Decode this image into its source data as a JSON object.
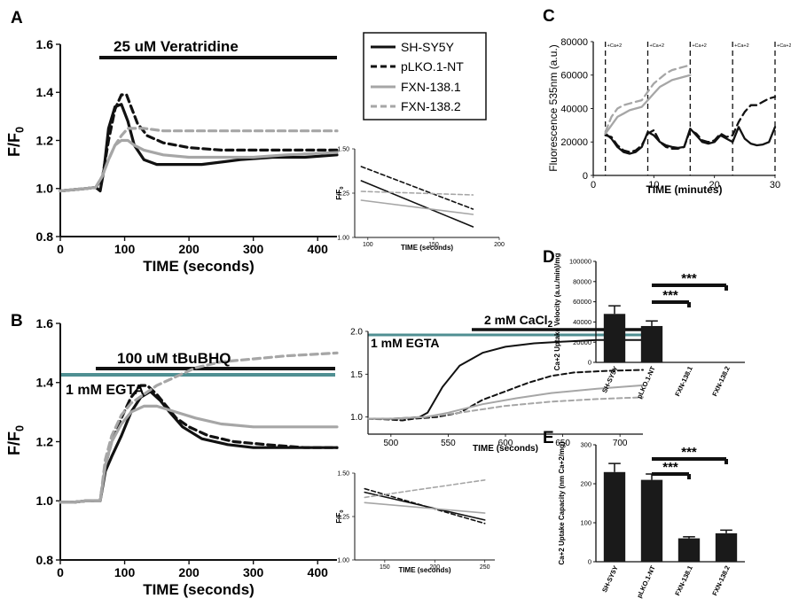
{
  "colors": {
    "black": "#111111",
    "gray": "#a6a6a6",
    "teal": "#4f8f92",
    "bar": "#1a1a1a"
  },
  "panels": {
    "A": "A",
    "B": "B",
    "C": "C",
    "D": "D",
    "E": "E"
  },
  "legend": [
    {
      "label": "SH-SY5Y",
      "color": "#111111",
      "dash": "solid"
    },
    {
      "label": "pLKO.1-NT",
      "color": "#111111",
      "dash": "dashed"
    },
    {
      "label": "FXN-138.1",
      "color": "#a6a6a6",
      "dash": "solid"
    },
    {
      "label": "FXN-138.2",
      "color": "#a6a6a6",
      "dash": "dashed"
    }
  ],
  "chart_data": [
    {
      "id": "A",
      "type": "line",
      "title": "25 uM Veratridine",
      "xlabel": "TIME (seconds)",
      "ylabel": "F/F0",
      "xlim": [
        0,
        430
      ],
      "ylim": [
        0.8,
        1.6
      ],
      "xticks": [
        0,
        100,
        200,
        300,
        400
      ],
      "yticks": [
        "0.8",
        "1.0",
        "1.2",
        "1.4",
        "1.6"
      ],
      "series": [
        {
          "name": "SH-SY5Y",
          "x": [
            0,
            20,
            40,
            55,
            62,
            68,
            75,
            85,
            95,
            105,
            115,
            130,
            150,
            180,
            220,
            280,
            330,
            380,
            430
          ],
          "y": [
            0.99,
            0.995,
            1.0,
            1.005,
            0.99,
            1.08,
            1.25,
            1.34,
            1.35,
            1.28,
            1.18,
            1.12,
            1.1,
            1.1,
            1.1,
            1.12,
            1.13,
            1.13,
            1.14
          ]
        },
        {
          "name": "pLKO.1-NT",
          "x": [
            0,
            20,
            40,
            55,
            65,
            75,
            85,
            95,
            103,
            110,
            120,
            135,
            160,
            200,
            250,
            300,
            350,
            430
          ],
          "y": [
            0.99,
            0.995,
            1.0,
            1.005,
            1.04,
            1.2,
            1.33,
            1.39,
            1.39,
            1.34,
            1.27,
            1.22,
            1.19,
            1.17,
            1.16,
            1.16,
            1.16,
            1.16
          ]
        },
        {
          "name": "FXN-138.1",
          "x": [
            0,
            20,
            40,
            55,
            65,
            75,
            85,
            95,
            105,
            115,
            130,
            160,
            200,
            250,
            300,
            350,
            430
          ],
          "y": [
            0.99,
            0.995,
            1.0,
            1.005,
            1.05,
            1.12,
            1.18,
            1.2,
            1.2,
            1.18,
            1.16,
            1.14,
            1.13,
            1.13,
            1.13,
            1.14,
            1.15
          ]
        },
        {
          "name": "FXN-138.2",
          "x": [
            0,
            20,
            40,
            55,
            65,
            75,
            85,
            95,
            105,
            115,
            130,
            160,
            200,
            250,
            300,
            350,
            430
          ],
          "y": [
            0.99,
            0.995,
            1.0,
            1.005,
            1.05,
            1.12,
            1.18,
            1.22,
            1.25,
            1.25,
            1.25,
            1.24,
            1.24,
            1.24,
            1.24,
            1.24,
            1.24
          ]
        }
      ]
    },
    {
      "id": "A-inset",
      "type": "line",
      "xlabel": "TIME (seconds)",
      "ylabel": "F/F0",
      "xlim": [
        90,
        200
      ],
      "ylim": [
        1.0,
        1.5
      ],
      "xticks": [
        100,
        150,
        200
      ],
      "yticks": [
        "1.00",
        "1.25",
        "1.50"
      ],
      "series": [
        {
          "name": "SH-SY5Y",
          "x": [
            95,
            180
          ],
          "y": [
            1.32,
            1.06
          ]
        },
        {
          "name": "pLKO.1-NT",
          "x": [
            95,
            180
          ],
          "y": [
            1.4,
            1.16
          ]
        },
        {
          "name": "FXN-138.1",
          "x": [
            95,
            180
          ],
          "y": [
            1.21,
            1.13
          ]
        },
        {
          "name": "FXN-138.2",
          "x": [
            95,
            180
          ],
          "y": [
            1.26,
            1.24
          ]
        }
      ]
    },
    {
      "id": "B",
      "type": "line",
      "title": "100 uM tBuBHQ",
      "annotation": "1 mM EGTA",
      "xlabel": "TIME (seconds)",
      "ylabel": "F/F0",
      "xlim": [
        0,
        430
      ],
      "ylim": [
        0.8,
        1.6
      ],
      "xticks": [
        0,
        100,
        200,
        300,
        400
      ],
      "yticks": [
        "0.8",
        "1.0",
        "1.2",
        "1.4",
        "1.6"
      ],
      "series": [
        {
          "name": "SH-SY5Y",
          "x": [
            0,
            20,
            40,
            55,
            62,
            70,
            80,
            95,
            110,
            125,
            140,
            155,
            170,
            190,
            220,
            260,
            300,
            350,
            430
          ],
          "y": [
            0.995,
            0.995,
            1.0,
            1.0,
            1.0,
            1.1,
            1.15,
            1.22,
            1.3,
            1.35,
            1.37,
            1.34,
            1.3,
            1.25,
            1.21,
            1.19,
            1.18,
            1.18,
            1.18
          ]
        },
        {
          "name": "pLKO.1-NT",
          "x": [
            0,
            20,
            40,
            55,
            62,
            70,
            80,
            95,
            110,
            125,
            135,
            150,
            165,
            180,
            200,
            230,
            270,
            320,
            380,
            430
          ],
          "y": [
            0.995,
            0.995,
            1.0,
            1.0,
            1.0,
            1.12,
            1.2,
            1.28,
            1.35,
            1.39,
            1.39,
            1.36,
            1.32,
            1.28,
            1.25,
            1.22,
            1.2,
            1.19,
            1.18,
            1.18
          ]
        },
        {
          "name": "FXN-138.1",
          "x": [
            0,
            20,
            40,
            55,
            62,
            70,
            80,
            95,
            110,
            130,
            150,
            180,
            210,
            250,
            300,
            350,
            430
          ],
          "y": [
            0.995,
            0.995,
            1.0,
            1.0,
            1.0,
            1.12,
            1.2,
            1.26,
            1.3,
            1.32,
            1.32,
            1.3,
            1.28,
            1.26,
            1.25,
            1.25,
            1.25
          ]
        },
        {
          "name": "FXN-138.2",
          "x": [
            0,
            20,
            40,
            55,
            62,
            70,
            80,
            95,
            110,
            130,
            150,
            180,
            210,
            250,
            300,
            350,
            430
          ],
          "y": [
            0.995,
            0.995,
            1.0,
            1.0,
            1.0,
            1.14,
            1.22,
            1.29,
            1.33,
            1.36,
            1.39,
            1.42,
            1.45,
            1.47,
            1.48,
            1.49,
            1.5
          ]
        }
      ]
    },
    {
      "id": "B-inset-top",
      "type": "line",
      "title": "2 mM CaCl2",
      "annotation": "1 mM EGTA",
      "xlabel": "TIME (seconds)",
      "xlim": [
        480,
        720
      ],
      "ylim": [
        0.8,
        2.0
      ],
      "xticks": [
        500,
        550,
        600,
        650,
        700
      ],
      "yticks": [
        "1.0",
        "1.5",
        "2.0"
      ],
      "series": [
        {
          "name": "SH-SY5Y",
          "x": [
            480,
            500,
            515,
            525,
            532,
            545,
            560,
            580,
            600,
            625,
            650,
            680,
            720
          ],
          "y": [
            0.98,
            0.98,
            0.99,
            1.0,
            1.05,
            1.35,
            1.6,
            1.75,
            1.82,
            1.86,
            1.88,
            1.9,
            1.9
          ]
        },
        {
          "name": "pLKO.1-NT",
          "x": [
            480,
            500,
            510,
            520,
            540,
            560,
            580,
            600,
            620,
            640,
            660,
            690,
            720
          ],
          "y": [
            0.98,
            0.97,
            0.96,
            0.98,
            1.0,
            1.05,
            1.2,
            1.3,
            1.4,
            1.48,
            1.52,
            1.54,
            1.55
          ]
        },
        {
          "name": "FXN-138.1",
          "x": [
            480,
            500,
            515,
            530,
            550,
            580,
            610,
            640,
            680,
            720
          ],
          "y": [
            0.98,
            0.98,
            0.99,
            1.0,
            1.05,
            1.15,
            1.22,
            1.28,
            1.33,
            1.37
          ]
        },
        {
          "name": "FXN-138.2",
          "x": [
            480,
            500,
            515,
            530,
            560,
            600,
            640,
            680,
            720
          ],
          "y": [
            0.98,
            0.98,
            0.99,
            1.0,
            1.05,
            1.13,
            1.18,
            1.21,
            1.23
          ]
        }
      ]
    },
    {
      "id": "B-inset-bottom",
      "type": "line",
      "xlabel": "TIME (seconds)",
      "ylabel": "F/F0",
      "xlim": [
        120,
        260
      ],
      "ylim": [
        1.0,
        1.5
      ],
      "xticks": [
        150,
        200,
        250
      ],
      "yticks": [
        "1.00",
        "1.25",
        "1.50"
      ],
      "series": [
        {
          "name": "SH-SY5Y",
          "x": [
            130,
            250
          ],
          "y": [
            1.39,
            1.23
          ]
        },
        {
          "name": "pLKO.1-NT",
          "x": [
            130,
            250
          ],
          "y": [
            1.41,
            1.21
          ]
        },
        {
          "name": "FXN-138.1",
          "x": [
            130,
            250
          ],
          "y": [
            1.33,
            1.27
          ]
        },
        {
          "name": "FXN-138.2",
          "x": [
            130,
            250
          ],
          "y": [
            1.36,
            1.46
          ]
        }
      ]
    },
    {
      "id": "C",
      "type": "line",
      "xlabel": "TIME (minutes)",
      "ylabel": "Fluorescence 535nm (a.u.)",
      "xlim": [
        0,
        30
      ],
      "ylim": [
        0,
        80000
      ],
      "xticks": [
        0,
        10,
        20,
        30
      ],
      "yticks": [
        "0",
        "20000",
        "40000",
        "60000",
        "80000"
      ],
      "ca_markers": {
        "label": "+Ca+2",
        "times": [
          2,
          9,
          16,
          23,
          30
        ]
      },
      "series": [
        {
          "name": "SH-SY5Y",
          "x": [
            2,
            3,
            4,
            5,
            6,
            7,
            8,
            9,
            10,
            11,
            12,
            13,
            14,
            15,
            16,
            17,
            18,
            19,
            20,
            21,
            22,
            23,
            24,
            25,
            26,
            27,
            28,
            29,
            30
          ],
          "y": [
            25000,
            22000,
            17000,
            14000,
            13000,
            14000,
            17000,
            26000,
            24000,
            20000,
            18000,
            17000,
            16500,
            17000,
            28000,
            24000,
            20000,
            19000,
            20000,
            24000,
            22000,
            20000,
            29000,
            22000,
            19000,
            18000,
            18500,
            20000,
            29000
          ]
        },
        {
          "name": "pLKO.1-NT",
          "x": [
            2,
            3,
            4,
            5,
            6,
            7,
            8,
            9,
            10,
            11,
            12,
            13,
            14,
            15,
            16,
            17,
            18,
            19,
            20,
            21,
            22,
            23,
            24,
            25,
            26,
            27,
            28,
            29,
            30
          ],
          "y": [
            24000,
            23000,
            18000,
            15000,
            14000,
            15000,
            18000,
            25000,
            27000,
            20000,
            17000,
            16000,
            16000,
            17000,
            27000,
            25000,
            21000,
            20000,
            21000,
            25000,
            23000,
            24000,
            32000,
            38000,
            42000,
            42000,
            44000,
            46000,
            47000
          ]
        },
        {
          "name": "FXN-138.1",
          "x": [
            2,
            3,
            4,
            5,
            6,
            7,
            8,
            9,
            10,
            11,
            12,
            13,
            14,
            15,
            16
          ],
          "y": [
            25000,
            30000,
            35000,
            37000,
            39000,
            40000,
            41000,
            45000,
            49000,
            53000,
            55000,
            57000,
            58000,
            59000,
            60000
          ]
        },
        {
          "name": "FXN-138.2",
          "x": [
            2,
            3,
            4,
            5,
            6,
            7,
            8,
            9,
            10,
            11,
            12,
            13,
            14,
            15,
            16
          ],
          "y": [
            26000,
            35000,
            40000,
            42000,
            43000,
            44000,
            45000,
            50000,
            55000,
            58000,
            61000,
            63000,
            64000,
            65000,
            66000
          ]
        }
      ]
    },
    {
      "id": "D",
      "type": "bar",
      "ylabel": "Ca+2 Uptake Velocity (a.u./min)/mg",
      "ylim": [
        0,
        100000
      ],
      "yticks": [
        "0",
        "20000",
        "40000",
        "60000",
        "80000",
        "100000"
      ],
      "categories": [
        "SH-SY5Y",
        "pLKO.1-NT",
        "FXN-138.1",
        "FXN-138.2"
      ],
      "values": [
        48000,
        36000,
        0,
        0
      ],
      "errors": [
        8000,
        5000,
        0,
        0
      ],
      "significance": [
        {
          "from": "pLKO.1-NT",
          "to": "FXN-138.1",
          "label": "***"
        },
        {
          "from": "pLKO.1-NT",
          "to": "FXN-138.2",
          "label": "***"
        }
      ]
    },
    {
      "id": "E",
      "type": "bar",
      "ylabel": "Ca+2 Uptake Capacity (nm Ca+2/mg)",
      "ylim": [
        0,
        300
      ],
      "yticks": [
        "0",
        "100",
        "200",
        "300"
      ],
      "categories": [
        "SH-SY5Y",
        "pLKO.1-NT",
        "FXN-138.1",
        "FXN-138.2"
      ],
      "values": [
        230,
        210,
        60,
        73
      ],
      "errors": [
        22,
        15,
        4,
        8
      ],
      "significance": [
        {
          "from": "pLKO.1-NT",
          "to": "FXN-138.1",
          "label": "***"
        },
        {
          "from": "pLKO.1-NT",
          "to": "FXN-138.2",
          "label": "***"
        }
      ]
    }
  ]
}
